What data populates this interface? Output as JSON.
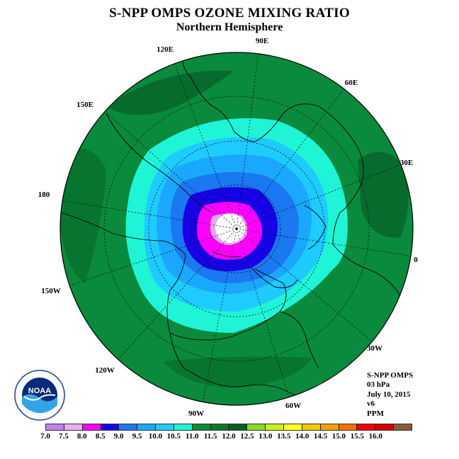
{
  "header": {
    "title": "S-NPP OMPS OZONE MIXING RATIO",
    "subtitle": "Northern Hemisphere"
  },
  "map": {
    "projection": "polar stereographic, north pole centered",
    "longitude_labels": [
      {
        "id": "lon-90e",
        "text": "90E"
      },
      {
        "id": "lon-60e",
        "text": "60E"
      },
      {
        "id": "lon-30e",
        "text": "30E"
      },
      {
        "id": "lon-0",
        "text": "0"
      },
      {
        "id": "lon-30w",
        "text": "30W"
      },
      {
        "id": "lon-60w",
        "text": "60W"
      },
      {
        "id": "lon-90w",
        "text": "90W"
      },
      {
        "id": "lon-120w",
        "text": "120W"
      },
      {
        "id": "lon-150w",
        "text": "150W"
      },
      {
        "id": "lon-180",
        "text": "180"
      },
      {
        "id": "lon-150e",
        "text": "150E"
      },
      {
        "id": "lon-120e",
        "text": "120E"
      }
    ],
    "field_levels_ppm": [
      {
        "level": "11.0-11.5",
        "color": "#0a8a3c"
      },
      {
        "level": "10.5-11.0",
        "color": "#1ff5d6"
      },
      {
        "level": "10.0-10.5",
        "color": "#1ecbff"
      },
      {
        "level": "9.5-10.0",
        "color": "#1aa8ff"
      },
      {
        "level": "9.0-9.5",
        "color": "#1a78f0"
      },
      {
        "level": "8.5-9.0",
        "color": "#1800e6"
      },
      {
        "level": "8.0-8.5",
        "color": "#ff00ff"
      },
      {
        "level": "7.5-8.0",
        "color": "#e8a8f0"
      },
      {
        "level": "missing",
        "color": "#ffffff"
      }
    ]
  },
  "info": {
    "instrument": "S-NPP OMPS",
    "level": "03 hPa",
    "date": "July 10, 2015",
    "version": "v6",
    "units": "PPM"
  },
  "colorbar": {
    "colors": [
      "#c080f0",
      "#e8b0f0",
      "#ff00ff",
      "#1800e6",
      "#1a78f0",
      "#1aa8ff",
      "#1ecbff",
      "#1ff5d6",
      "#0a8a3c",
      "#087a30",
      "#055f22",
      "#88dd22",
      "#ccee22",
      "#ffff22",
      "#f5c800",
      "#f5a000",
      "#f57000",
      "#f00000",
      "#d40000",
      "#8b5a3c"
    ],
    "labels": [
      "7.0",
      "7.5",
      "8.0",
      "8.5",
      "9.0",
      "9.5",
      "10.0",
      "10.5",
      "11.0",
      "11.5",
      "12.0",
      "12.5",
      "13.0",
      "13.5",
      "14.0",
      "14.5",
      "15.0",
      "15.5",
      "16.0"
    ]
  },
  "logo": {
    "text": "NOAA",
    "icon": "noaa-logo"
  }
}
